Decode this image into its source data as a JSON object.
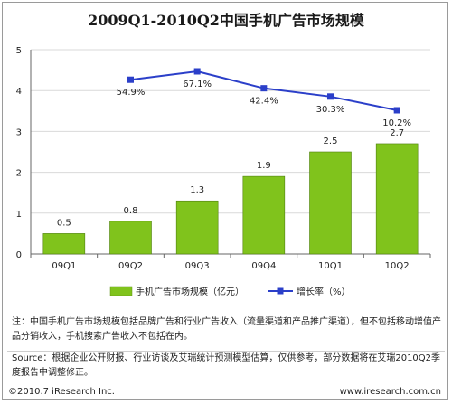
{
  "chart_data": {
    "type": "bar+line",
    "title": "2009Q1-2010Q2中国手机广告市场规模",
    "categories": [
      "09Q1",
      "09Q2",
      "09Q3",
      "09Q4",
      "10Q1",
      "10Q2"
    ],
    "bar_series": {
      "name": "手机广告市场规模（亿元）",
      "values": [
        0.5,
        0.8,
        1.3,
        1.9,
        2.5,
        2.7
      ],
      "labels": [
        "0.5",
        "0.8",
        "1.3",
        "1.9",
        "2.5",
        "2.7"
      ],
      "color": "#80c31c"
    },
    "line_series": {
      "name": "增长率（%）",
      "values": [
        54.9,
        67.1,
        42.4,
        30.3,
        10.2
      ],
      "labels": [
        "54.9%",
        "67.1%",
        "42.4%",
        "30.3%",
        "10.2%"
      ],
      "categories": [
        "09Q2",
        "09Q3",
        "09Q4",
        "10Q1",
        "10Q2"
      ],
      "color": "#2b3fc9"
    },
    "y_ticks": [
      "0",
      "1",
      "2",
      "3",
      "4",
      "5"
    ],
    "ylim": [
      0,
      5
    ],
    "grid": true,
    "legend_position": "bottom"
  },
  "notes": {
    "note_1": "注：中国手机广告市场规模包括品牌广告和行业广告收入（流量渠道和产品推广渠道），但不包括移动增值产品分销收入，手机搜索广告收入不包括在内。",
    "note_2": "Source：根据企业公开财报、行业访谈及艾瑞统计预测模型估算，仅供参考，部分数据将在艾瑞2010Q2季度报告中调整修正。"
  },
  "footer": {
    "copyright": "©2010.7 iResearch Inc.",
    "website": "www.iresearch.com.cn"
  }
}
